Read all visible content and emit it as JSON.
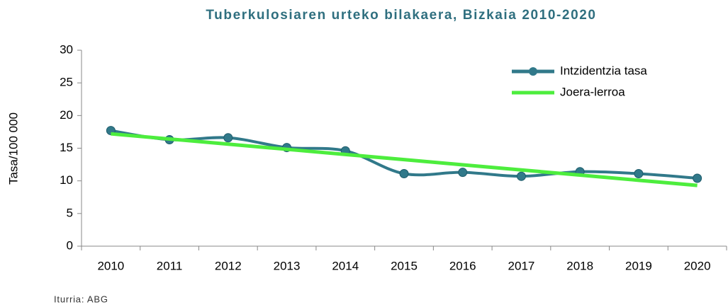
{
  "chart_data": {
    "type": "line",
    "title": "Tuberkulosiaren urteko bilakaera, Bizkaia 2010-2020",
    "y_label": "Tasa/100 000",
    "source": "Iturria: ABG",
    "categories": [
      "2010",
      "2011",
      "2012",
      "2013",
      "2014",
      "2015",
      "2016",
      "2017",
      "2018",
      "2019",
      "2020"
    ],
    "series": [
      {
        "name": "Intzidentzia tasa",
        "color": "#31798a",
        "smooth": true,
        "markers": true,
        "values": [
          17.7,
          16.3,
          16.6,
          15.1,
          14.6,
          11.1,
          11.3,
          10.7,
          11.4,
          11.1,
          10.4
        ]
      },
      {
        "name": "Joera-lerroa",
        "color": "#4ded3d",
        "smooth": false,
        "markers": false,
        "values": [
          17.2,
          16.41,
          15.62,
          14.83,
          14.04,
          13.25,
          12.46,
          11.67,
          10.88,
          10.09,
          9.3
        ]
      }
    ],
    "ylim": [
      0,
      30
    ],
    "yticks": [
      0,
      5,
      10,
      15,
      20,
      25,
      30
    ],
    "grid": false,
    "legend": "upper right"
  }
}
